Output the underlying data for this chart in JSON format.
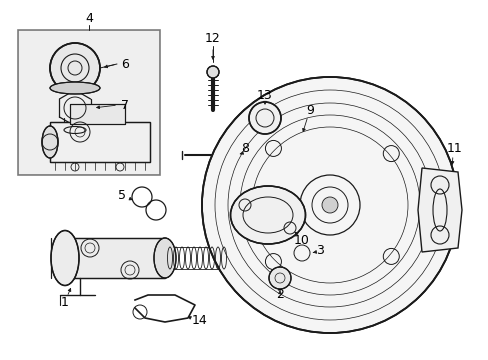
{
  "bg_color": "#ffffff",
  "line_color": "#1a1a1a",
  "inset_bg": "#e8e8e8",
  "label_color": "#000000",
  "fig_w": 4.89,
  "fig_h": 3.6,
  "dpi": 100
}
